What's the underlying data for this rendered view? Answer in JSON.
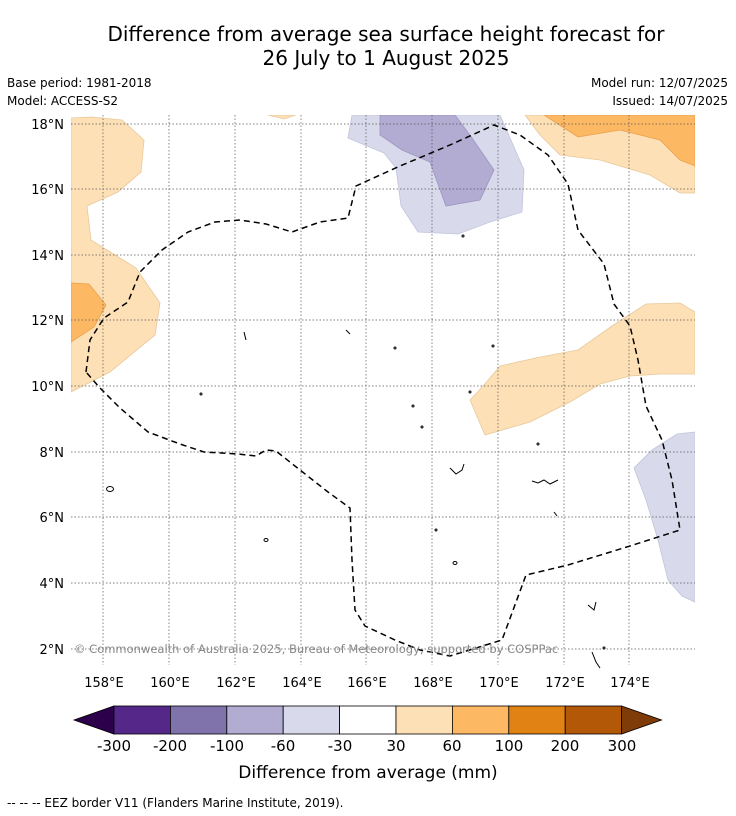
{
  "title_line1": "Difference from average sea surface height forecast for",
  "title_line2": "26 July to 1 August 2025",
  "base_period": "Base period: 1981-2018",
  "model": "Model: ACCESS-S2",
  "model_run": "Model run: 12/07/2025",
  "issued": "Issued: 14/07/2025",
  "copyright": "© Commonwealth of Australia 2025, Bureau of Meteorology, supported by COSPPac",
  "lat_labels": [
    "18°N",
    "16°N",
    "14°N",
    "12°N",
    "10°N",
    "8°N",
    "6°N",
    "4°N",
    "2°N"
  ],
  "lon_labels": [
    "158°E",
    "160°E",
    "162°E",
    "164°E",
    "166°E",
    "168°E",
    "170°E",
    "172°E",
    "174°E"
  ],
  "colorbar": {
    "label": "Difference from average (mm)",
    "tick_labels": [
      "-300",
      "-200",
      "-100",
      "-60",
      "-30",
      "30",
      "60",
      "100",
      "200",
      "300"
    ],
    "colors": [
      "#2d004b",
      "#542788",
      "#8073ac",
      "#b2abd2",
      "#d8daeb",
      "#ffffff",
      "#fee0b6",
      "#fdb863",
      "#e08214",
      "#b35806",
      "#7f3b08"
    ]
  },
  "footer": "-- -- -- EEZ border V11 (Flanders Marine Institute, 2019)."
}
